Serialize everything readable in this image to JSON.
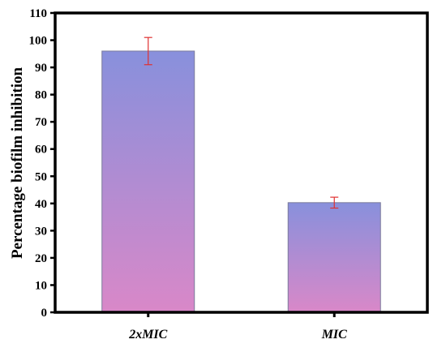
{
  "chart_data": {
    "type": "bar",
    "title": "",
    "xlabel": "",
    "ylabel": "Percentage biofilm inhibition",
    "categories": [
      "2xMIC",
      "MIC"
    ],
    "values": [
      96,
      40.3
    ],
    "error": [
      5,
      2
    ],
    "ylim": [
      0,
      110
    ],
    "yticks": [
      0,
      10,
      20,
      30,
      40,
      50,
      60,
      70,
      80,
      90,
      100,
      110
    ],
    "grid": false,
    "legend": "none",
    "colors": {
      "bar_top": "#8890dc",
      "bar_bottom": "#d988c8",
      "bar_outline": "#7a7a9a",
      "error_bar": "#e03030",
      "axis": "#000000"
    }
  }
}
